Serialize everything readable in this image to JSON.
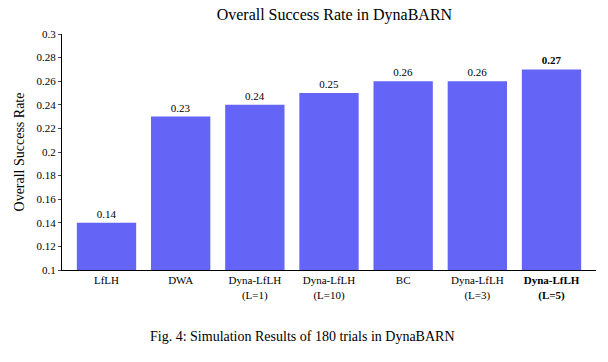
{
  "chart_data": {
    "type": "bar",
    "title": "Overall Success Rate in DynaBARN",
    "caption": "Fig. 4: Simulation Results of 180 trials in DynaBARN",
    "y_label": "Overall Success Rate",
    "categories": [
      "LfLH",
      "DWA",
      "Dyna-LfLH (L=1)",
      "Dyna-LfLH (L=10)",
      "BC",
      "Dyna-LfLH (L=3)",
      "Dyna-LfLH (L=5)"
    ],
    "values": [
      0.14,
      0.23,
      0.24,
      0.25,
      0.26,
      0.26,
      0.27
    ],
    "color": "#6464f6",
    "ylim": [
      0.1,
      0.3
    ],
    "yticks": [
      0.1,
      0.12,
      0.14,
      0.16,
      0.18,
      0.2,
      0.22,
      0.24,
      0.26,
      0.28,
      0.3
    ],
    "grid": false,
    "data_labels": true
  }
}
